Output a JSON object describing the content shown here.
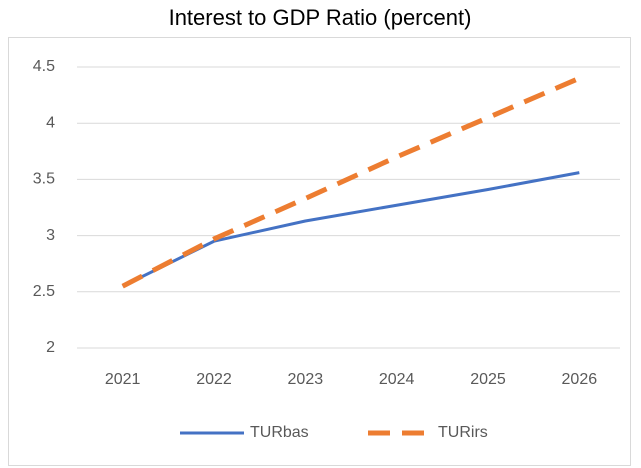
{
  "chart_data": {
    "type": "line",
    "title": "Interest to GDP Ratio (percent)",
    "categories": [
      "2021",
      "2022",
      "2023",
      "2024",
      "2025",
      "2026"
    ],
    "series": [
      {
        "name": "TURbas",
        "color": "#4472c4",
        "line_style": "solid",
        "values": [
          2.55,
          2.95,
          3.13,
          3.27,
          3.41,
          3.56
        ]
      },
      {
        "name": "TURirs",
        "color": "#ed7d31",
        "line_style": "dashed",
        "values": [
          2.55,
          2.97,
          3.33,
          3.7,
          4.05,
          4.4
        ]
      }
    ],
    "ylim": [
      2,
      4.5
    ],
    "yticks": [
      2,
      2.5,
      3,
      3.5,
      4,
      4.5
    ],
    "grid": true,
    "legend": "bottom"
  }
}
